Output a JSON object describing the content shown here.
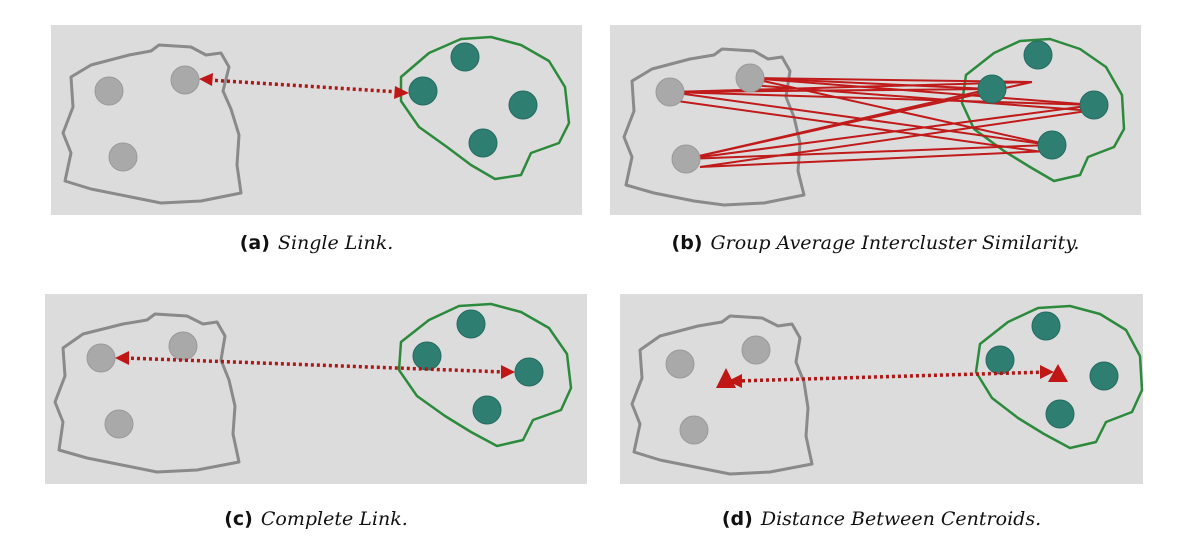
{
  "panels": [
    {
      "id": "a",
      "tag": "(a)",
      "caption": "Single Link."
    },
    {
      "id": "b",
      "tag": "(b)",
      "caption": "Group Average Intercluster Similarity."
    },
    {
      "id": "c",
      "tag": "(c)",
      "caption": "Complete Link."
    },
    {
      "id": "d",
      "tag": "(d)",
      "caption": "Distance Between Centroids."
    }
  ],
  "colors": {
    "panel_background": "#dcdcdc",
    "grey_cluster": "#a9a9a9",
    "teal_cluster": "#2e7e72",
    "grey_outline": "#8a8a8a",
    "green_outline": "#2c8a3c",
    "link_red": "#c01616"
  }
}
